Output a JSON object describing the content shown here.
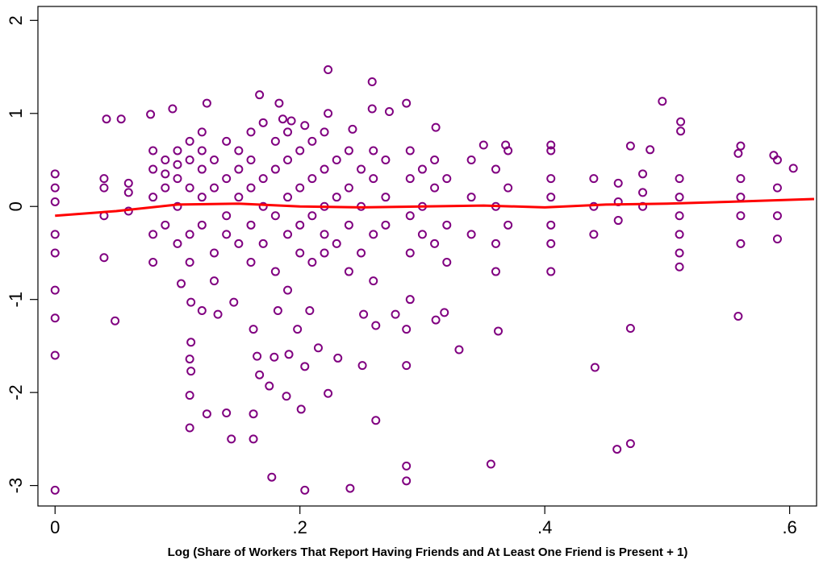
{
  "chart_data": {
    "type": "scatter",
    "x_label": "Log (Share of Workers That Report Having Friends and At Least One Friend is Present + 1)",
    "xlim": [
      -0.014,
      0.622
    ],
    "ylim": [
      -3.22,
      2.15
    ],
    "xticks": [
      0,
      {
        "value": 0.2,
        "label": ".2"
      },
      {
        "value": 0.4,
        "label": ".4"
      },
      {
        "value": 0.6,
        "label": ".6"
      }
    ],
    "yticks": [
      -3,
      -2,
      -1,
      0,
      1,
      2
    ],
    "series": [
      {
        "kind": "scatter",
        "color": "#800080",
        "x": [
          0,
          0,
          0,
          0,
          0,
          0,
          0,
          0,
          0,
          0.177,
          0.204,
          0.241,
          0.287,
          0.287,
          0.356,
          0.459,
          0.47,
          0.144,
          0.162,
          0.11,
          0.124,
          0.14,
          0.162,
          0.223,
          0.262,
          0.189,
          0.201,
          0.11,
          0.111,
          0.11,
          0.175,
          0.167,
          0.165,
          0.179,
          0.191,
          0.204,
          0.215,
          0.231,
          0.251,
          0.287,
          0.33,
          0.441,
          0.558,
          0.47,
          0.362,
          0.287,
          0.311,
          0.318,
          0.278,
          0.252,
          0.262,
          0.198,
          0.208,
          0.182,
          0.162,
          0.133,
          0.146,
          0.111,
          0.12,
          0.049,
          0.103,
          0.111,
          0.223,
          0.259,
          0.167,
          0.496,
          0.096,
          0.078,
          0.124,
          0.183,
          0.287,
          0.259,
          0.273,
          0.311,
          0.223,
          0.186,
          0.193,
          0.204,
          0.243,
          0.042,
          0.054,
          0.511,
          0.511,
          0.47,
          0.486,
          0.603,
          0.558,
          0.587,
          0.405,
          0.368,
          0.35,
          0.04,
          0.04,
          0.04,
          0.04,
          0.06,
          0.06,
          0.06,
          0.08,
          0.08,
          0.08,
          0.08,
          0.08,
          0.09,
          0.09,
          0.09,
          0.09,
          0.1,
          0.1,
          0.1,
          0.1,
          0.1,
          0.11,
          0.11,
          0.11,
          0.11,
          0.11,
          0.12,
          0.12,
          0.12,
          0.12,
          0.12,
          0.13,
          0.13,
          0.13,
          0.13,
          0.14,
          0.14,
          0.14,
          0.14,
          0.15,
          0.15,
          0.15,
          0.15,
          0.16,
          0.16,
          0.16,
          0.16,
          0.16,
          0.17,
          0.17,
          0.17,
          0.17,
          0.18,
          0.18,
          0.18,
          0.18,
          0.19,
          0.19,
          0.19,
          0.19,
          0.19,
          0.2,
          0.2,
          0.2,
          0.2,
          0.21,
          0.21,
          0.21,
          0.21,
          0.22,
          0.22,
          0.22,
          0.22,
          0.22,
          0.23,
          0.23,
          0.23,
          0.24,
          0.24,
          0.24,
          0.24,
          0.25,
          0.25,
          0.25,
          0.26,
          0.26,
          0.26,
          0.26,
          0.27,
          0.27,
          0.27,
          0.29,
          0.29,
          0.29,
          0.29,
          0.29,
          0.3,
          0.3,
          0.3,
          0.31,
          0.31,
          0.31,
          0.32,
          0.32,
          0.32,
          0.34,
          0.34,
          0.34,
          0.36,
          0.36,
          0.36,
          0.36,
          0.37,
          0.37,
          0.37,
          0.405,
          0.405,
          0.405,
          0.405,
          0.405,
          0.405,
          0.44,
          0.44,
          0.44,
          0.46,
          0.46,
          0.46,
          0.48,
          0.48,
          0.48,
          0.51,
          0.51,
          0.51,
          0.51,
          0.51,
          0.51,
          0.56,
          0.56,
          0.56,
          0.56,
          0.56,
          0.59,
          0.59,
          0.59,
          0.59
        ],
        "values": [
          -3.05,
          -1.6,
          -1.2,
          -0.9,
          0.35,
          -0.3,
          0.05,
          0.2,
          -0.5,
          -2.91,
          -3.05,
          -3.03,
          -2.79,
          -2.95,
          -2.77,
          -2.61,
          -2.55,
          -2.5,
          -2.5,
          -2.38,
          -2.23,
          -2.22,
          -2.23,
          -2.01,
          -2.3,
          -2.04,
          -2.18,
          -2.03,
          -1.77,
          -1.64,
          -1.93,
          -1.81,
          -1.61,
          -1.62,
          -1.59,
          -1.72,
          -1.52,
          -1.63,
          -1.71,
          -1.71,
          -1.54,
          -1.73,
          -1.18,
          -1.31,
          -1.34,
          -1.32,
          -1.22,
          -1.14,
          -1.16,
          -1.16,
          -1.28,
          -1.32,
          -1.12,
          -1.12,
          -1.32,
          -1.16,
          -1.03,
          -1.03,
          -1.12,
          -1.23,
          -0.83,
          -1.46,
          1.47,
          1.34,
          1.2,
          1.13,
          1.05,
          0.99,
          1.11,
          1.11,
          1.11,
          1.05,
          1.02,
          0.85,
          1.0,
          0.94,
          0.92,
          0.87,
          0.83,
          0.94,
          0.94,
          0.91,
          0.81,
          0.65,
          0.61,
          0.41,
          0.57,
          0.55,
          0.66,
          0.66,
          0.66,
          0.3,
          -0.1,
          0.2,
          -0.55,
          0.25,
          0.15,
          -0.05,
          0.4,
          0.1,
          -0.3,
          0.6,
          -0.6,
          0.5,
          0.2,
          -0.2,
          0.35,
          0.6,
          0.3,
          0.0,
          -0.4,
          0.45,
          0.7,
          0.2,
          -0.3,
          0.5,
          -0.6,
          0.8,
          0.4,
          0.1,
          -0.2,
          0.6,
          0.5,
          0.2,
          -0.5,
          -0.8,
          0.7,
          0.3,
          -0.1,
          -0.3,
          0.6,
          0.1,
          -0.4,
          0.4,
          0.8,
          0.5,
          0.2,
          -0.2,
          -0.6,
          0.9,
          0.3,
          0.0,
          -0.4,
          0.7,
          0.4,
          -0.1,
          -0.7,
          0.8,
          0.5,
          0.1,
          -0.3,
          -0.9,
          0.6,
          0.2,
          -0.2,
          -0.5,
          0.7,
          0.3,
          -0.1,
          -0.6,
          0.8,
          0.4,
          0.0,
          -0.3,
          -0.5,
          0.5,
          0.1,
          -0.4,
          0.6,
          0.2,
          -0.2,
          -0.7,
          0.4,
          0.0,
          -0.5,
          0.6,
          0.3,
          -0.3,
          -0.8,
          0.5,
          0.1,
          -0.2,
          0.6,
          0.3,
          -0.1,
          -0.5,
          -1.0,
          0.4,
          0.0,
          -0.3,
          0.5,
          0.2,
          -0.4,
          0.3,
          -0.2,
          -0.6,
          0.5,
          0.1,
          -0.3,
          0.4,
          0.0,
          -0.4,
          -0.7,
          0.6,
          0.2,
          -0.2,
          0.6,
          0.3,
          0.1,
          -0.2,
          -0.4,
          -0.7,
          0.3,
          0.0,
          -0.3,
          0.25,
          0.05,
          -0.15,
          0.35,
          0.15,
          0.0,
          0.3,
          0.1,
          -0.1,
          -0.3,
          -0.5,
          -0.65,
          0.65,
          0.3,
          0.1,
          -0.1,
          -0.4,
          0.5,
          0.2,
          -0.1,
          -0.35
        ]
      },
      {
        "kind": "line",
        "color": "#ff0000",
        "x": [
          0,
          0.05,
          0.1,
          0.15,
          0.2,
          0.25,
          0.3,
          0.35,
          0.4,
          0.45,
          0.5,
          0.55,
          0.62
        ],
        "values": [
          -0.1,
          -0.05,
          0.02,
          0.03,
          0.0,
          -0.01,
          0.0,
          0.01,
          -0.01,
          0.02,
          0.03,
          0.05,
          0.08
        ]
      }
    ]
  }
}
